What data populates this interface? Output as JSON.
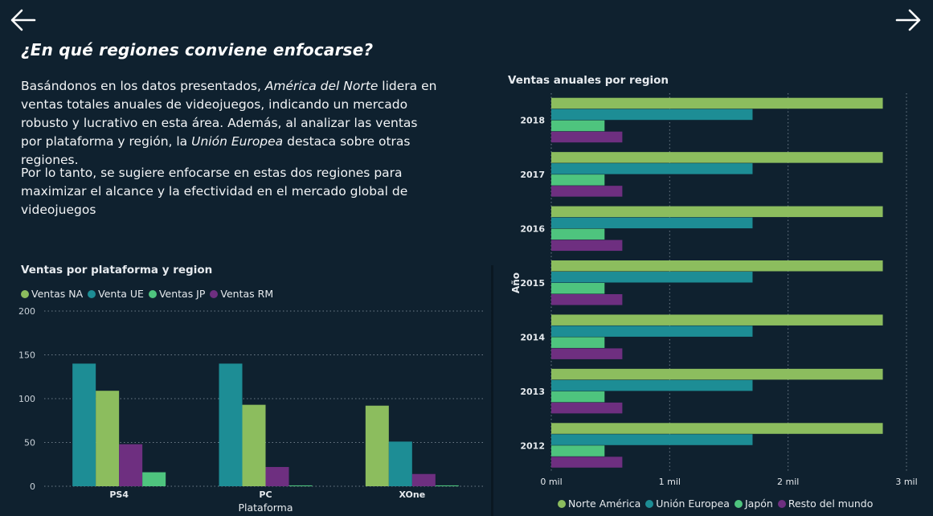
{
  "heading": "¿En qué regiones conviene enfocarse?",
  "paragraph1": {
    "t1": "Basándonos en los datos presentados, ",
    "em1": "América del Norte",
    "t2": " lidera en ventas totales anuales de videojuegos, indicando un mercado robusto y lucrativo en esta área. Además, al analizar las ventas por plataforma y región, la ",
    "em2": "Unión Europea",
    "t3": " destaca sobre otras regiones."
  },
  "paragraph2": "Por lo tanto, se sugiere enfocarse en estas dos regiones para maximizar el alcance y la efectividad en el mercado global de videojuegos",
  "nav": {
    "back_icon": "arrow-left-icon",
    "next_icon": "arrow-right-icon"
  },
  "chart_data": [
    {
      "type": "bar",
      "title": "Ventas por plataforma y region",
      "xlabel": "Plataforma",
      "ylabel": "",
      "categories": [
        "PS4",
        "PC",
        "XOne"
      ],
      "series": [
        {
          "name": "Ventas NA",
          "color": "#8cbd5e",
          "values": [
            109,
            93,
            92
          ]
        },
        {
          "name": "Venta UE",
          "color": "#1d8d95",
          "values": [
            140,
            140,
            51
          ]
        },
        {
          "name": "Ventas JP",
          "color": "#4ec47e",
          "values": [
            16,
            1,
            1
          ]
        },
        {
          "name": "Ventas RM",
          "color": "#6e2f80",
          "values": [
            48,
            22,
            14
          ]
        }
      ],
      "bar_order": [
        [
          "Venta UE",
          "Ventas NA",
          "Ventas RM",
          "Ventas JP"
        ],
        [
          "Venta UE",
          "Ventas NA",
          "Ventas RM",
          "Ventas JP"
        ],
        [
          "Ventas NA",
          "Venta UE",
          "Ventas RM",
          "Ventas JP"
        ]
      ],
      "ylim": [
        0,
        200
      ],
      "yticks": [
        0,
        50,
        100,
        150,
        200
      ],
      "grid": true,
      "legend_position": "top-left"
    },
    {
      "type": "bar",
      "orientation": "horizontal",
      "title": "Ventas anuales por region",
      "ylabel": "Año",
      "xlabel": "",
      "categories": [
        "2018",
        "2017",
        "2016",
        "2015",
        "2014",
        "2013",
        "2012"
      ],
      "series": [
        {
          "name": "Norte América",
          "color": "#8cbd5e",
          "values": [
            2800,
            2800,
            2800,
            2800,
            2800,
            2800,
            2800
          ]
        },
        {
          "name": "Unión Europea",
          "color": "#1d8d95",
          "values": [
            1700,
            1700,
            1700,
            1700,
            1700,
            1700,
            1700
          ]
        },
        {
          "name": "Japón",
          "color": "#4ec47e",
          "values": [
            450,
            450,
            450,
            450,
            450,
            450,
            450
          ]
        },
        {
          "name": "Resto del mundo",
          "color": "#6e2f80",
          "values": [
            600,
            600,
            600,
            600,
            600,
            600,
            600
          ]
        }
      ],
      "xlim": [
        0,
        3000
      ],
      "xticks": [
        0,
        1000,
        2000,
        3000
      ],
      "xtick_labels": [
        "0 mil",
        "1 mil",
        "2 mil",
        "3 mil"
      ],
      "grid": true,
      "legend_position": "bottom"
    }
  ]
}
